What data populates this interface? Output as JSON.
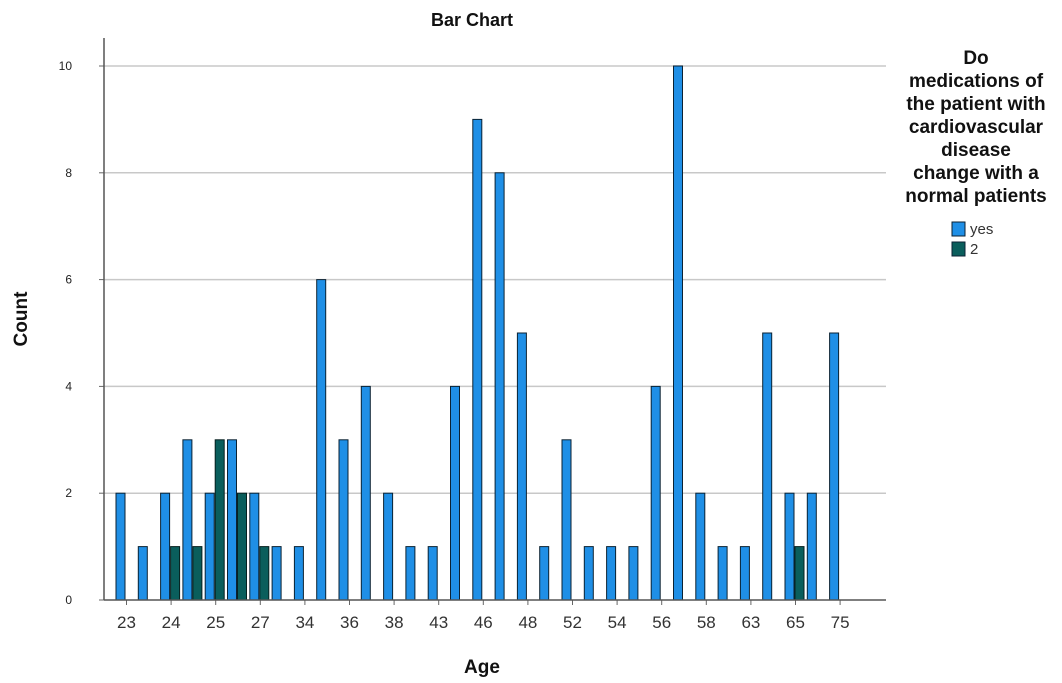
{
  "chart_data": {
    "type": "bar",
    "title": "Bar Chart",
    "xlabel": "Age",
    "ylabel": "Count",
    "ylim": [
      0,
      10
    ],
    "yticks": [
      0,
      2,
      4,
      6,
      8,
      10
    ],
    "grid": true,
    "legend_position": "right",
    "legend_title_lines": [
      "Do",
      "medications of",
      "the patient with",
      "cardiovascular",
      "disease",
      "change with a",
      "normal patients"
    ],
    "categories": [
      "23",
      "",
      "24",
      "",
      "25",
      "",
      "27",
      "",
      "34",
      "",
      "36",
      "",
      "38",
      "",
      "43",
      "",
      "46",
      "",
      "48",
      "",
      "52",
      "",
      "54",
      "",
      "56",
      "",
      "58",
      "",
      "63",
      "",
      "65",
      "",
      "75"
    ],
    "series": [
      {
        "name": "yes",
        "color": "#1f8fe6",
        "values": [
          2,
          1,
          2,
          3,
          2,
          3,
          2,
          1,
          1,
          6,
          3,
          4,
          2,
          1,
          1,
          4,
          9,
          8,
          5,
          1,
          3,
          1,
          1,
          1,
          4,
          10,
          2,
          1,
          1,
          5,
          2,
          2,
          5
        ]
      },
      {
        "name": "2",
        "color": "#0a5e5c",
        "values": [
          0,
          0,
          1,
          1,
          3,
          2,
          1,
          0,
          0,
          0,
          0,
          0,
          0,
          0,
          0,
          0,
          0,
          0,
          0,
          0,
          0,
          0,
          0,
          0,
          0,
          0,
          0,
          0,
          0,
          0,
          1,
          0,
          0
        ]
      }
    ]
  }
}
